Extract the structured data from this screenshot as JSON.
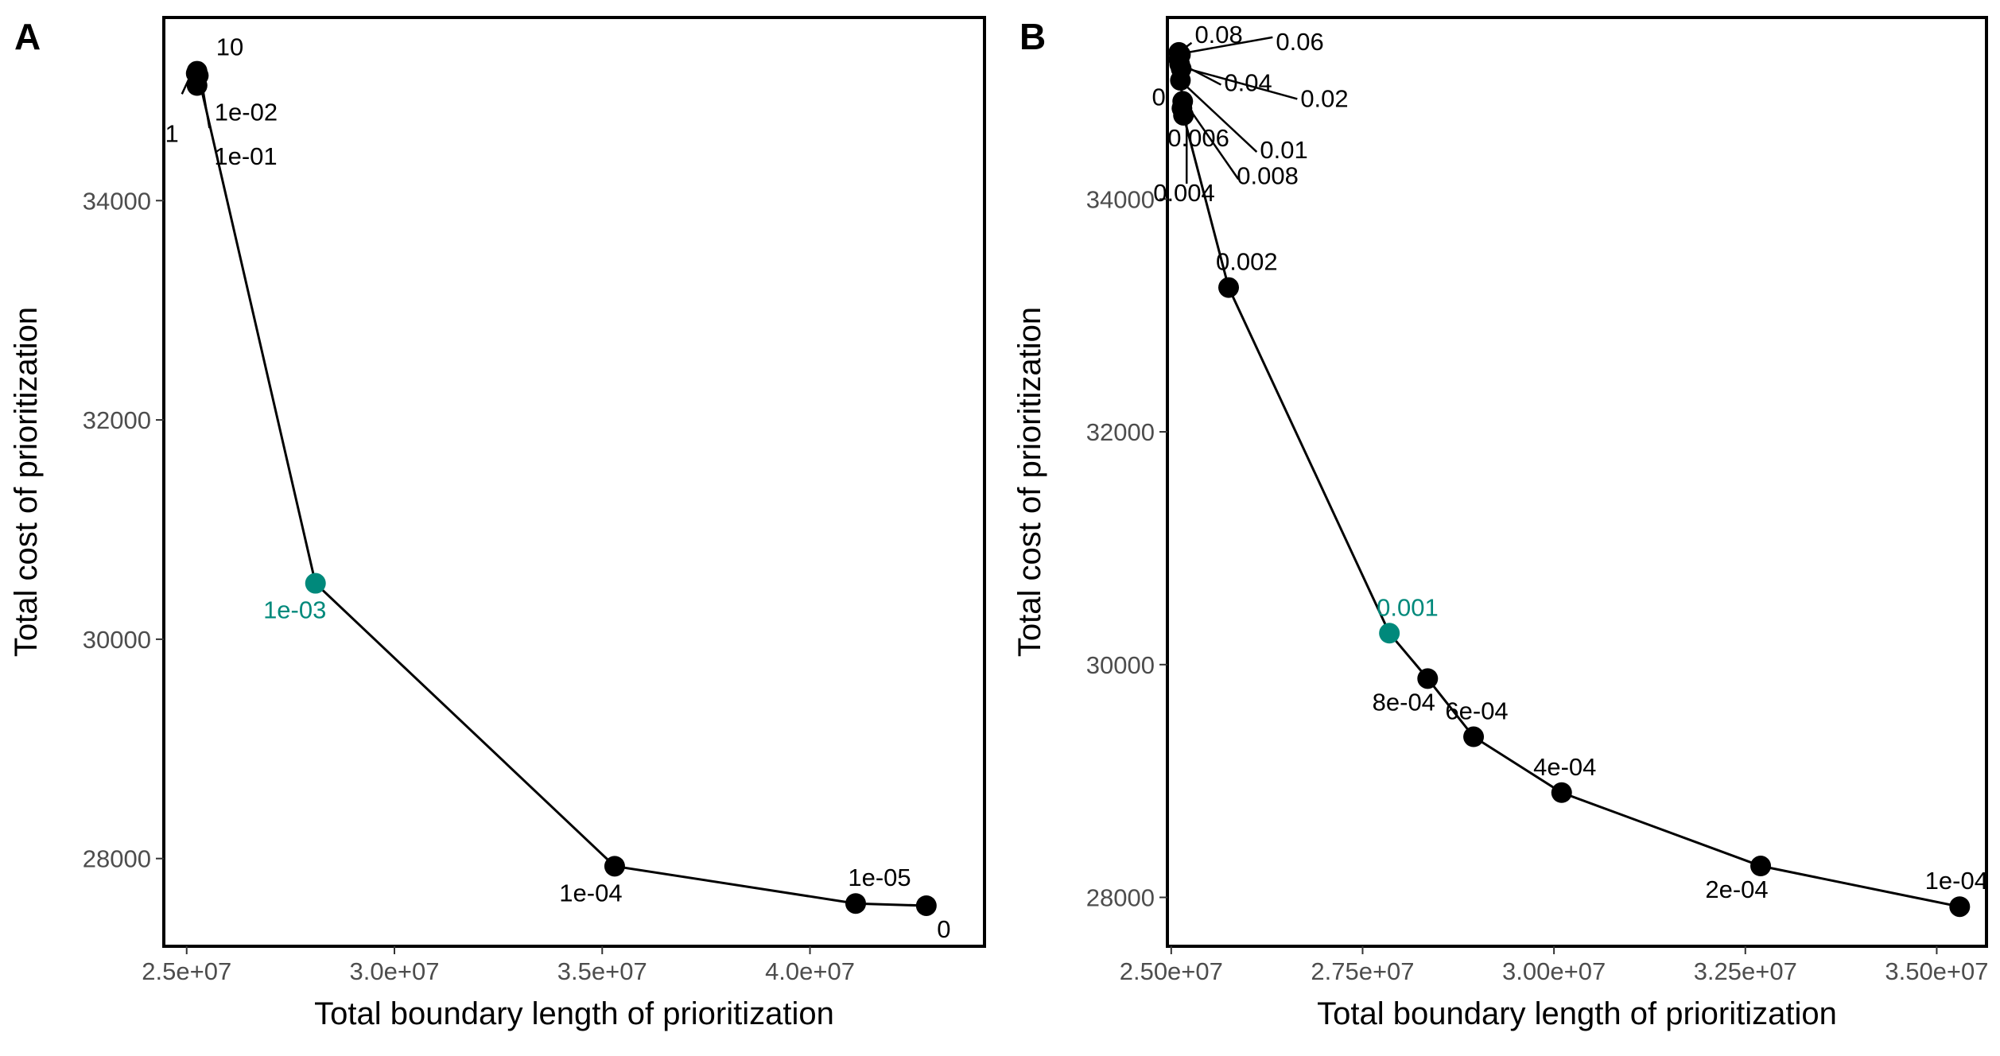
{
  "chart_data": [
    {
      "type": "line",
      "panel_label": "A",
      "xlabel": "Total boundary length of prioritization",
      "ylabel": "Total cost of prioritization",
      "xlim": [
        24450000,
        44200000
      ],
      "ylim": [
        27200000,
        35670000
      ],
      "x_ticks": [
        25000000,
        30000000,
        35000000,
        40000000
      ],
      "x_tick_labels": [
        "2.5e+07",
        "3.0e+07",
        "3.5e+07",
        "4.0e+07"
      ],
      "y_ticks": [
        28000,
        30000,
        32000,
        34000
      ],
      "y_tick_labels": [
        "28000",
        "30000",
        "32000",
        "34000"
      ],
      "grid": false,
      "points": [
        {
          "x": 25250000,
          "y": 35180,
          "label": "10",
          "highlight": false
        },
        {
          "x": 25230000,
          "y": 35160,
          "label": "1",
          "highlight": false
        },
        {
          "x": 25280000,
          "y": 35140,
          "label": "1e-01",
          "highlight": false
        },
        {
          "x": 25250000,
          "y": 35050,
          "label": "1e-02",
          "highlight": false
        },
        {
          "x": 28100000,
          "y": 30510,
          "label": "1e-03",
          "highlight": true
        },
        {
          "x": 35300000,
          "y": 27930,
          "label": "1e-04",
          "highlight": false
        },
        {
          "x": 41100000,
          "y": 27590,
          "label": "1e-05",
          "highlight": false
        },
        {
          "x": 42800000,
          "y": 27570,
          "label": "0",
          "highlight": false
        }
      ]
    },
    {
      "type": "line",
      "panel_label": "B",
      "xlabel": "Total boundary length of prioritization",
      "ylabel": "Total cost of prioritization",
      "xlim": [
        24950000,
        35650000
      ],
      "ylim": [
        27580,
        35560
      ],
      "x_ticks": [
        25000000,
        27500000,
        30000000,
        32500000,
        35000000
      ],
      "x_tick_labels": [
        "2.50e+07",
        "2.75e+07",
        "3.00e+07",
        "3.25e+07",
        "3.50e+07"
      ],
      "y_ticks": [
        28000,
        30000,
        32000,
        34000
      ],
      "y_tick_labels": [
        "28000",
        "30000",
        "32000",
        "34000"
      ],
      "grid": false,
      "points": [
        {
          "x": 25100000,
          "y": 35260,
          "label": "0.08",
          "highlight": false
        },
        {
          "x": 25120000,
          "y": 35240,
          "label": "0.06",
          "highlight": false
        },
        {
          "x": 25100000,
          "y": 35200,
          "label": "0",
          "highlight": false
        },
        {
          "x": 25110000,
          "y": 35160,
          "label": "0.04",
          "highlight": false
        },
        {
          "x": 25130000,
          "y": 35120,
          "label": "0.02",
          "highlight": false
        },
        {
          "x": 25120000,
          "y": 35020,
          "label": "0.01",
          "highlight": false
        },
        {
          "x": 25150000,
          "y": 34840,
          "label": "0.008",
          "highlight": false
        },
        {
          "x": 25140000,
          "y": 34780,
          "label": "0.006",
          "highlight": false
        },
        {
          "x": 25160000,
          "y": 34720,
          "label": "0.004",
          "highlight": false
        },
        {
          "x": 25750000,
          "y": 33240,
          "label": "0.002",
          "highlight": false
        },
        {
          "x": 27850000,
          "y": 30270,
          "label": "0.001",
          "highlight": true
        },
        {
          "x": 28350000,
          "y": 29880,
          "label": "8e-04",
          "highlight": false
        },
        {
          "x": 28950000,
          "y": 29380,
          "label": "6e-04",
          "highlight": false
        },
        {
          "x": 30100000,
          "y": 28900,
          "label": "4e-04",
          "highlight": false
        },
        {
          "x": 32700000,
          "y": 28270,
          "label": "2e-04",
          "highlight": false
        },
        {
          "x": 35300000,
          "y": 27920,
          "label": "1e-04",
          "highlight": false
        }
      ]
    }
  ],
  "colors": {
    "point": "#000000",
    "highlight": "#00897b",
    "line": "#000000",
    "panel_border": "#000000",
    "tick_text": "#4d4d4d",
    "label_text": "#000000"
  }
}
